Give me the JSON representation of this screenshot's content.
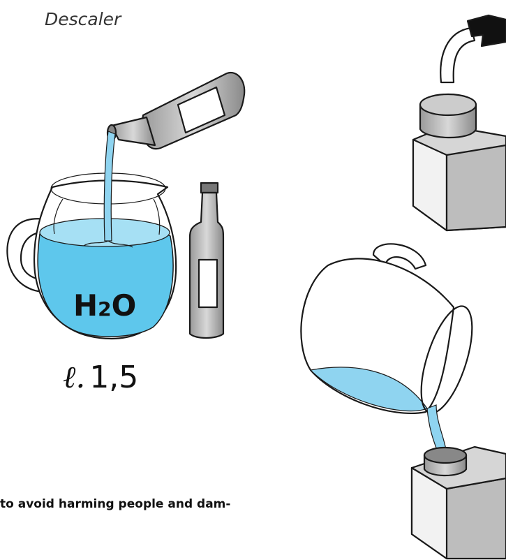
{
  "caption": "Descaler",
  "jug_label": {
    "h": "H",
    "subscript": "2",
    "o": "O"
  },
  "volume": {
    "unit": "ℓ.",
    "amount": "1,5"
  },
  "body_text": "to avoid harming people and dam-"
}
